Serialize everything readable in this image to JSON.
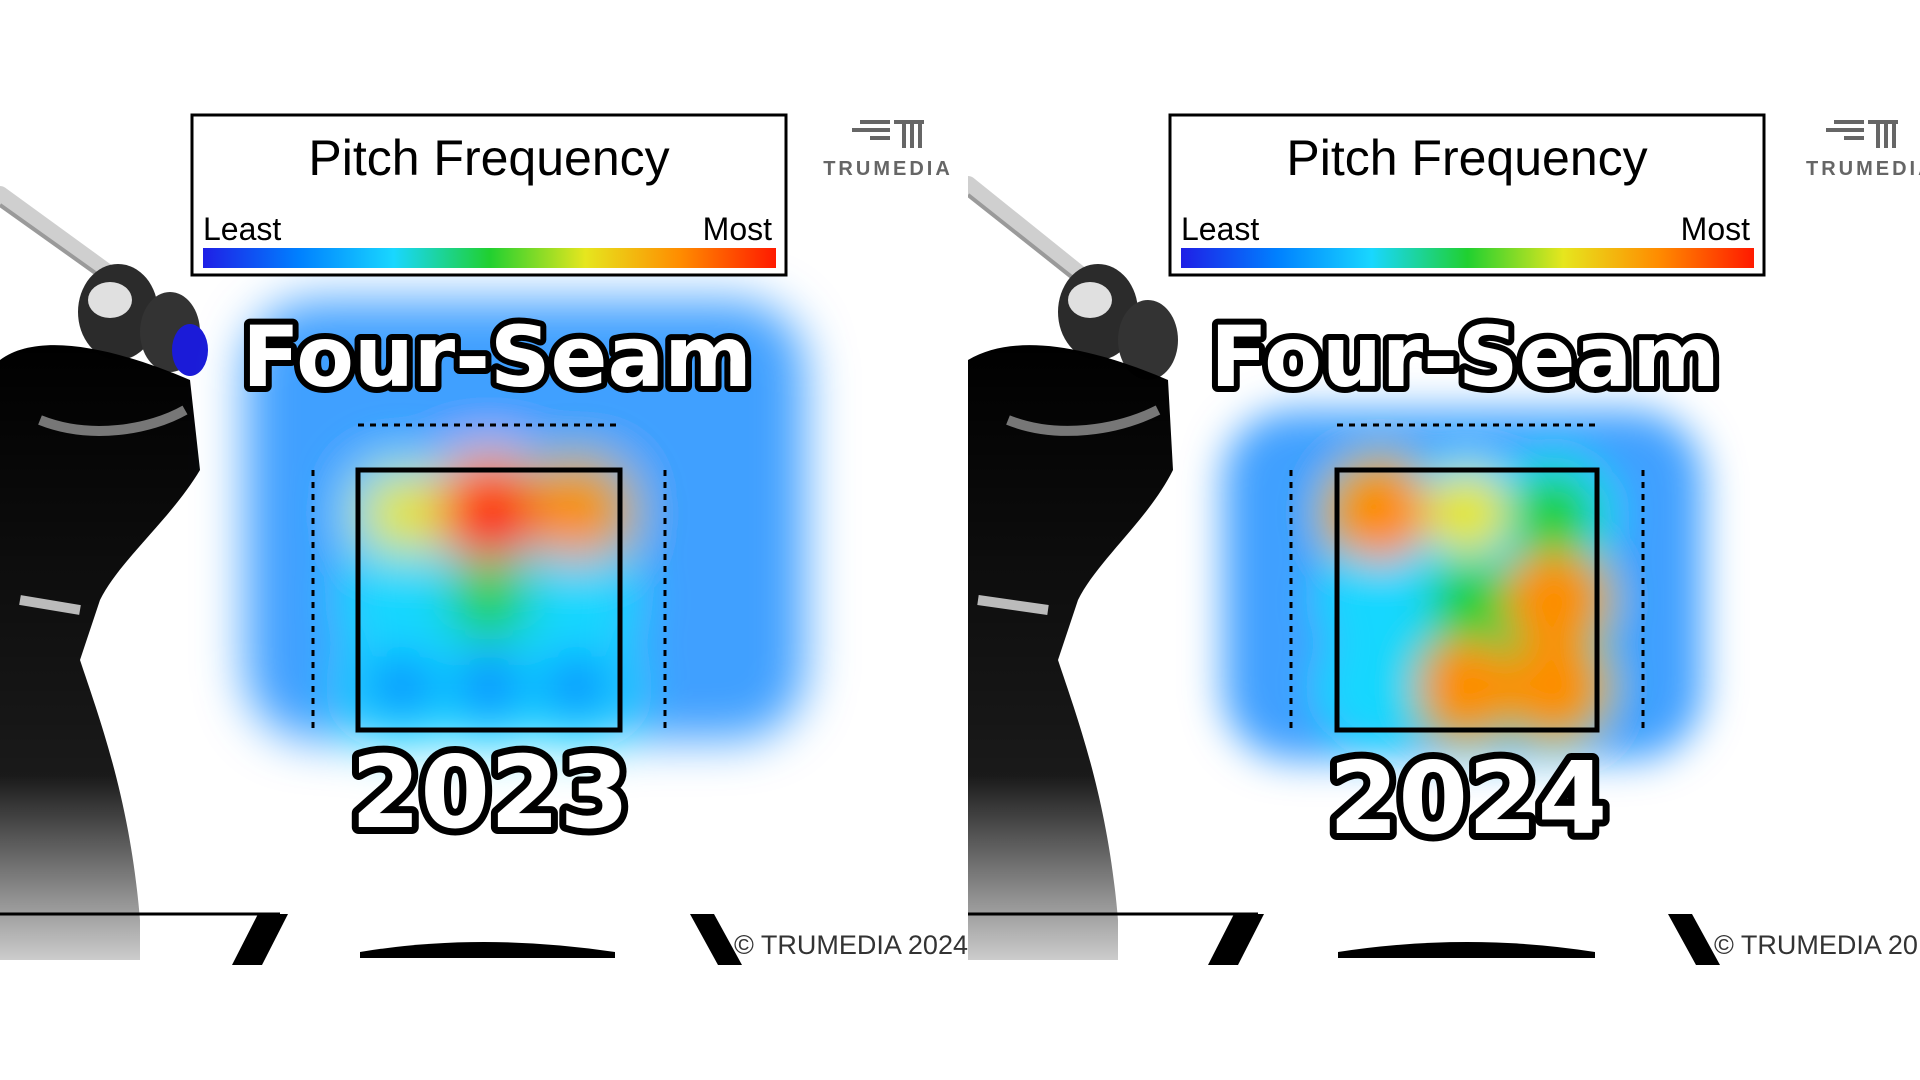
{
  "colors": {
    "scale": [
      "#1f1fe6",
      "#0080ff",
      "#19d7ff",
      "#20d030",
      "#e6e61e",
      "#ff8c00",
      "#ff1a00"
    ],
    "outline": "#000000",
    "background": "#ffffff"
  },
  "panels": [
    {
      "legend": {
        "title": "Pitch Frequency",
        "least": "Least",
        "most": "Most"
      },
      "brand": "TRUMEDIA",
      "pitch_type": "Four-Seam",
      "year": "2023",
      "copyright": "© TRUMEDIA 2024"
    },
    {
      "legend": {
        "title": "Pitch Frequency",
        "least": "Least",
        "most": "Most"
      },
      "brand": "TRUMEDIA",
      "pitch_type": "Four-Seam",
      "year": "2024",
      "copyright": "© TRUMEDIA 20"
    }
  ],
  "chart_data": [
    {
      "type": "heatmap",
      "title": "Pitch Frequency",
      "scale": {
        "low": "Least",
        "high": "Most"
      },
      "pitch_type": "Four-Seam",
      "year": "2023",
      "zone_cols": 3,
      "zone_rows": 3,
      "cells": [
        [
          0.6,
          0.95,
          0.85
        ],
        [
          0.35,
          0.55,
          0.4
        ],
        [
          0.15,
          0.2,
          0.15
        ]
      ]
    },
    {
      "type": "heatmap",
      "title": "Pitch Frequency",
      "scale": {
        "low": "Least",
        "high": "Most"
      },
      "pitch_type": "Four-Seam",
      "year": "2024",
      "zone_cols": 3,
      "zone_rows": 3,
      "cells": [
        [
          0.9,
          0.6,
          0.55
        ],
        [
          0.4,
          0.45,
          0.9
        ],
        [
          0.35,
          0.85,
          0.85
        ]
      ]
    }
  ]
}
